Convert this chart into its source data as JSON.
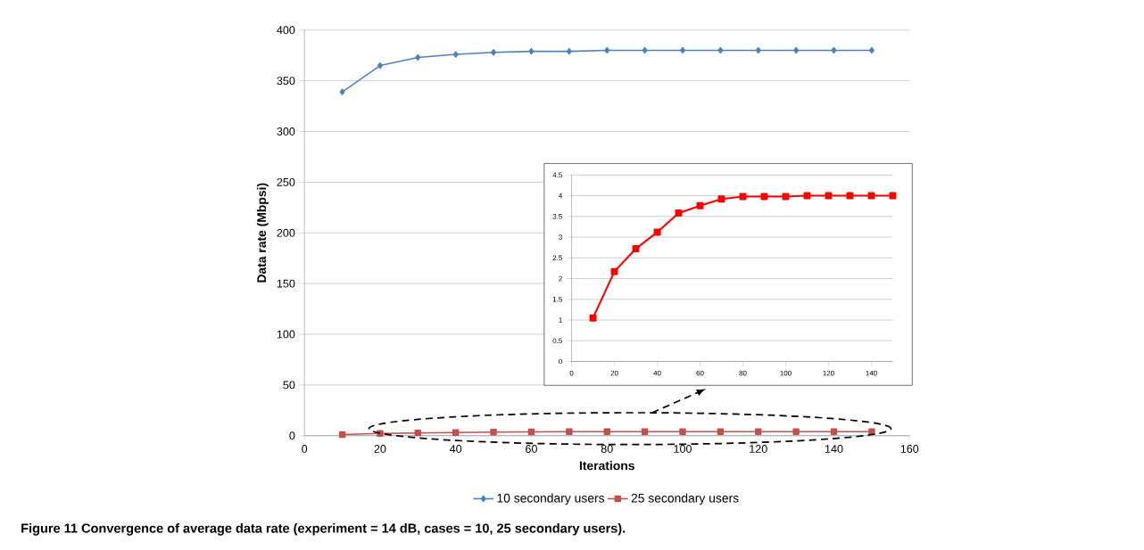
{
  "chart_data": [
    {
      "type": "line",
      "title": "Figure 11 Convergence of average data rate (experiment = 14 dB, cases = 10, 25 secondary users).",
      "xlabel": "Iterations",
      "ylabel": "Data rate (Mbpsi)",
      "x": [
        10,
        20,
        30,
        40,
        50,
        60,
        70,
        80,
        90,
        100,
        110,
        120,
        130,
        140,
        150
      ],
      "xlim": [
        0,
        160
      ],
      "xticks": [
        0,
        20,
        40,
        60,
        80,
        100,
        120,
        140,
        160
      ],
      "ylim": [
        0,
        400
      ],
      "yticks": [
        0,
        50,
        100,
        150,
        200,
        250,
        300,
        350,
        400
      ],
      "grid": "y",
      "legend": "bottom",
      "series": [
        {
          "name": "10 secondary users",
          "color": "#4f81bd",
          "marker": "diamond",
          "values": [
            339,
            365,
            373,
            376,
            378,
            379,
            379,
            380,
            380,
            380,
            380,
            380,
            380,
            380,
            380
          ]
        },
        {
          "name": "25 secondary users",
          "color": "#c0504d",
          "marker": "square",
          "values": [
            1.05,
            2.17,
            2.72,
            3.12,
            3.58,
            3.76,
            3.92,
            3.98,
            3.98,
            3.98,
            4.0,
            4.0,
            4.0,
            4.0,
            4.0
          ]
        }
      ]
    },
    {
      "type": "line",
      "x": [
        10,
        20,
        30,
        40,
        50,
        60,
        70,
        80,
        90,
        100,
        110,
        120,
        130,
        140,
        150
      ],
      "xlim": [
        0,
        150
      ],
      "xticks": [
        0,
        20,
        40,
        60,
        80,
        100,
        120,
        140
      ],
      "ylim": [
        0,
        4.5
      ],
      "yticks": [
        0,
        0.5,
        1,
        1.5,
        2,
        2.5,
        3,
        3.5,
        4,
        4.5
      ],
      "grid": "y",
      "series": [
        {
          "color": "#ff0000",
          "marker": "square",
          "values": [
            1.05,
            2.17,
            2.72,
            3.12,
            3.58,
            3.76,
            3.92,
            3.98,
            3.98,
            3.98,
            4.0,
            4.0,
            4.0,
            4.0,
            4.0
          ]
        }
      ]
    }
  ]
}
